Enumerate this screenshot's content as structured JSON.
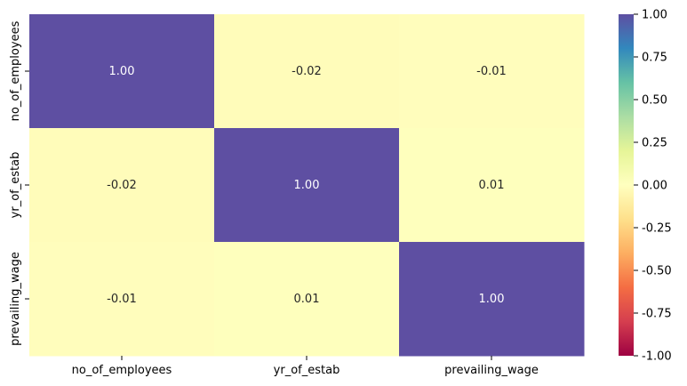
{
  "chart_data": {
    "type": "heatmap",
    "title": "",
    "xlabel": "",
    "ylabel": "",
    "rows": [
      "no_of_employees",
      "yr_of_estab",
      "prevailing_wage"
    ],
    "columns": [
      "no_of_employees",
      "yr_of_estab",
      "prevailing_wage"
    ],
    "values": [
      [
        1.0,
        -0.02,
        -0.01
      ],
      [
        -0.02,
        1.0,
        0.01
      ],
      [
        -0.01,
        0.01,
        1.0
      ]
    ],
    "value_format": "0.00",
    "colormap": "Spectral",
    "colorbar": {
      "range": [
        -1.0,
        1.0
      ],
      "ticks": [
        1.0,
        0.75,
        0.5,
        0.25,
        0.0,
        -0.25,
        -0.5,
        -0.75,
        -1.0
      ]
    }
  }
}
